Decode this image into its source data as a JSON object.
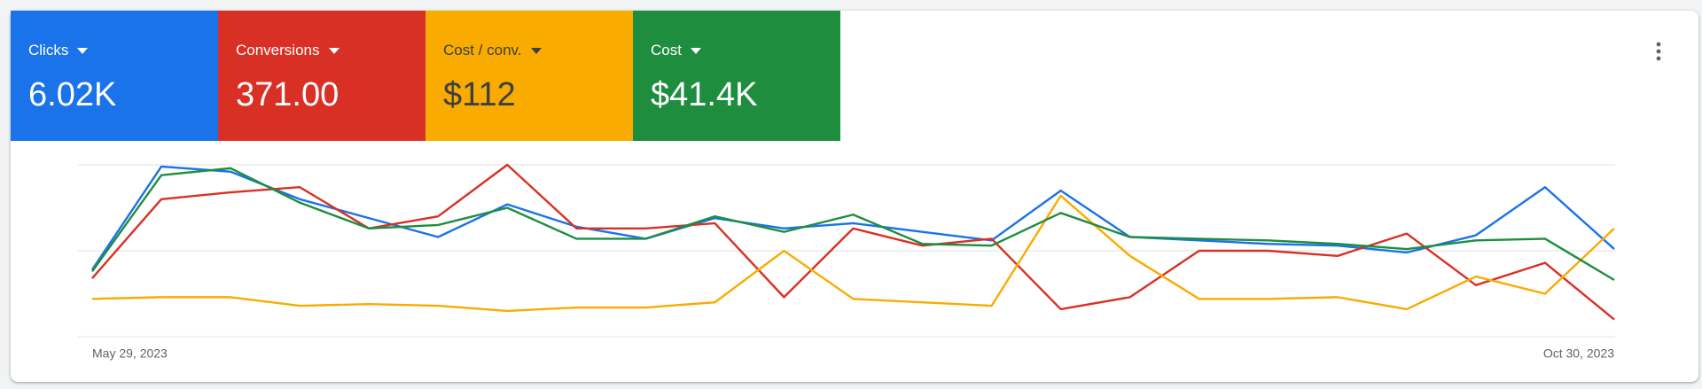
{
  "scorecards": [
    {
      "label": "Clicks",
      "value": "6.02K",
      "color": "#1a73e8"
    },
    {
      "label": "Conversions",
      "value": "371.00",
      "color": "#d93025"
    },
    {
      "label": "Cost / conv.",
      "value": "$112",
      "color": "#f9ab00"
    },
    {
      "label": "Cost",
      "value": "$41.4K",
      "color": "#1e8e3e"
    }
  ],
  "chart_data": {
    "type": "line",
    "categories": [
      "May 29, 2023",
      null,
      null,
      null,
      null,
      null,
      null,
      null,
      null,
      null,
      null,
      null,
      null,
      null,
      null,
      null,
      null,
      null,
      null,
      null,
      null,
      null,
      "Oct 30, 2023"
    ],
    "series": [
      {
        "color": "#1a73e8",
        "values": [
          39,
          99,
          96,
          80,
          69,
          58,
          77,
          64,
          57,
          69,
          63,
          66,
          61,
          56,
          85,
          58,
          56,
          54,
          53,
          49,
          59,
          87,
          51
        ]
      },
      {
        "color": "#d93025",
        "values": [
          34,
          80,
          84,
          87,
          63,
          70,
          100,
          63,
          63,
          66,
          23,
          63,
          53,
          57,
          16,
          23,
          50,
          50,
          47,
          60,
          30,
          43,
          10
        ]
      },
      {
        "color": "#f9ab00",
        "values": [
          22,
          23,
          23,
          18,
          19,
          18,
          15,
          17,
          17,
          20,
          50,
          22,
          20,
          18,
          82,
          47,
          22,
          22,
          23,
          16,
          35,
          25,
          63
        ]
      },
      {
        "color": "#1e8e3e",
        "values": [
          38,
          94,
          98,
          78,
          63,
          65,
          75,
          57,
          57,
          70,
          61,
          71,
          54,
          53,
          72,
          58,
          57,
          56,
          54,
          51,
          56,
          57,
          33
        ]
      }
    ],
    "ylim": [
      0,
      100
    ],
    "yticks": [
      0,
      50,
      100
    ],
    "grid": true
  }
}
